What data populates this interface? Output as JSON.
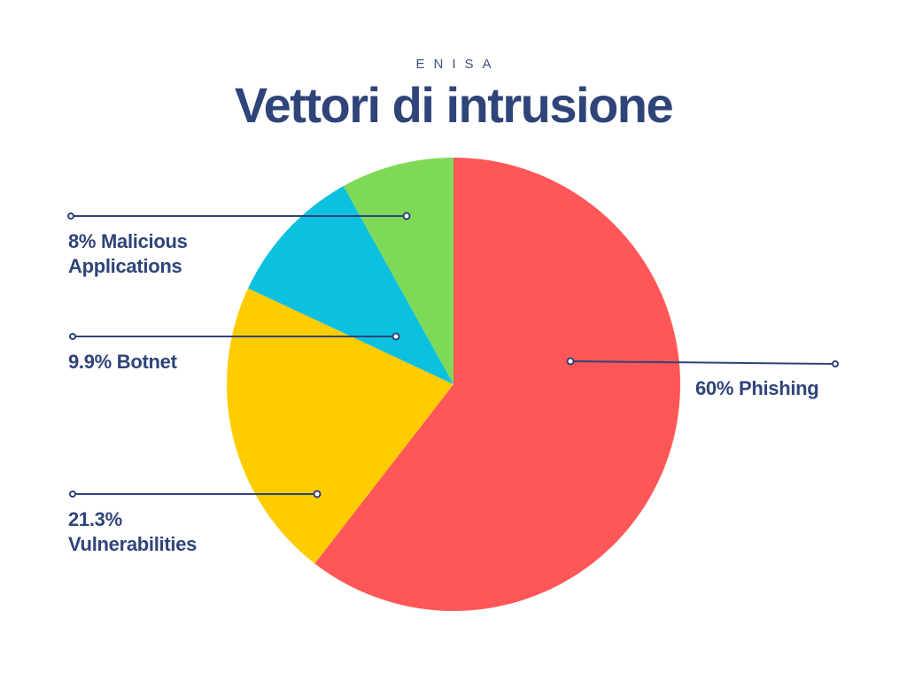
{
  "header": {
    "kicker": "ENISA",
    "title": "Vettori di intrusione"
  },
  "labels": {
    "phishing": "60% Phishing",
    "vulnerabilities_pct": "21.3%",
    "vulnerabilities_name": "Vulnerabilities",
    "botnet": "9.9% Botnet",
    "malicious_line1": "8% Malicious",
    "malicious_line2": "Applications"
  },
  "colors": {
    "phishing": "#ff5757",
    "vulnerabilities": "#ffcc00",
    "botnet": "#0cc0df",
    "malicious_applications": "#7ed957",
    "text": "#2f4479"
  },
  "chart_data": {
    "type": "pie",
    "title": "Vettori di intrusione",
    "subtitle": "ENISA",
    "categories": [
      "Phishing",
      "Vulnerabilities",
      "Botnet",
      "Malicious Applications"
    ],
    "values": [
      60,
      21.3,
      9.9,
      8
    ],
    "unit": "%",
    "colors": [
      "#ff5757",
      "#ffcc00",
      "#0cc0df",
      "#7ed957"
    ],
    "start_angle": "12 o'clock",
    "direction": "clockwise",
    "legend": "leader-line labels"
  }
}
